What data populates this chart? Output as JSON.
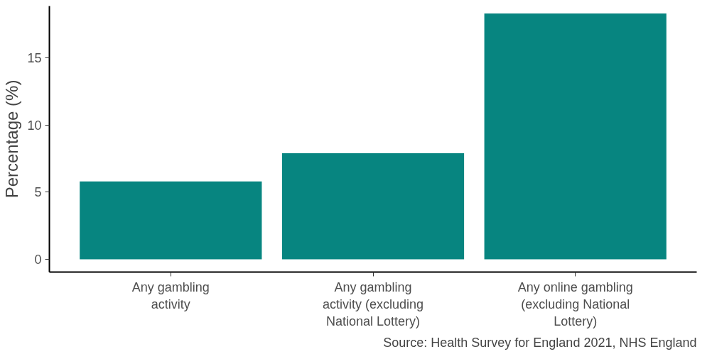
{
  "chart_data": {
    "type": "bar",
    "ylabel": "Percentage (%)",
    "categories": [
      "Any gambling\nactivity",
      "Any gambling\nactivity (excluding\nNational Lottery)",
      "Any online gambling\n(excluding National\nLottery)"
    ],
    "values": [
      5.8,
      7.9,
      18.3
    ],
    "color": "#078580",
    "ylim": [
      -0.95,
      18.85
    ],
    "yticks": [
      0,
      5,
      10,
      15
    ],
    "grid": false,
    "annotations": [
      "Source: Health Survey for England 2021, NHS England"
    ]
  }
}
